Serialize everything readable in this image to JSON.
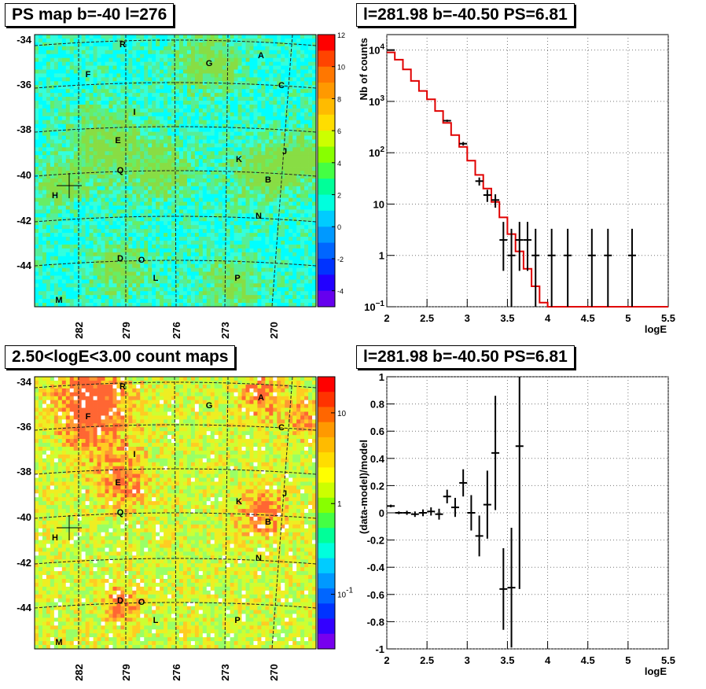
{
  "panels": {
    "ps_map_title": "PS map b=-40 l=276",
    "spectrum_title": "l=281.98 b=-40.50 PS=6.81",
    "count_map_title": "2.50<logE<3.00 count maps",
    "residual_title": "l=281.98 b=-40.50 PS=6.81"
  },
  "colors": {
    "model_line": "#e00000",
    "data_points": "#000000",
    "grid": "#777777"
  },
  "chart_data": [
    {
      "type": "heatmap",
      "title": "PS map b=-40 l=276",
      "y_ticks": [
        "-34",
        "-36",
        "-38",
        "-40",
        "-42",
        "-44"
      ],
      "x_ticks": [
        "282",
        "279",
        "276",
        "273",
        "270"
      ],
      "colorbar_ticks": [
        "12",
        "10",
        "8",
        "6",
        "4",
        "2",
        "0",
        "-2",
        "-4"
      ],
      "colorbar_range": [
        -5,
        12
      ],
      "source_labels": [
        "R",
        "G",
        "A",
        "F",
        "C",
        "I",
        "E",
        "J",
        "K",
        "Q",
        "B",
        "H",
        "N",
        "D",
        "O",
        "L",
        "P",
        "M"
      ],
      "marker": "H"
    },
    {
      "type": "line",
      "title": "l=281.98 b=-40.50 PS=6.81",
      "xlabel": "logE",
      "ylabel": "Nb of counts",
      "xlim": [
        2,
        5.5
      ],
      "ylim": [
        0.1,
        20000
      ],
      "log_y": true,
      "x_ticks": [
        "2",
        "2.5",
        "3",
        "3.5",
        "4",
        "4.5",
        "5",
        "5.5"
      ],
      "y_ticks": [
        {
          "value": 0.1,
          "base": "10",
          "exp": "−1"
        },
        {
          "value": 1,
          "base": "1",
          "exp": ""
        },
        {
          "value": 10,
          "base": "10",
          "exp": ""
        },
        {
          "value": 100,
          "base": "10",
          "exp": "2"
        },
        {
          "value": 1000,
          "base": "10",
          "exp": "3"
        },
        {
          "value": 10000,
          "base": "10",
          "exp": "4"
        }
      ],
      "series": [
        {
          "kind": "step",
          "x_edges": [
            2.0,
            2.1,
            2.2,
            2.3,
            2.4,
            2.5,
            2.6,
            2.7,
            2.8,
            2.9,
            3.0,
            3.1,
            3.2,
            3.3,
            3.4,
            3.5,
            3.6,
            3.7,
            3.8,
            3.9,
            4.0,
            4.1,
            5.5
          ],
          "values": [
            9000,
            6500,
            4200,
            2500,
            1600,
            1100,
            650,
            380,
            220,
            130,
            70,
            37,
            20,
            11,
            5.5,
            2.6,
            1.2,
            0.55,
            0.25,
            0.12,
            0.1,
            0.1
          ]
        },
        {
          "kind": "errorbars",
          "x": [
            2.05,
            2.75,
            2.95,
            3.15,
            3.25,
            3.35,
            3.45,
            3.55,
            3.65,
            3.75,
            3.85,
            4.05,
            4.25,
            4.55,
            4.75,
            5.05
          ],
          "y": [
            10000,
            420,
            150,
            28,
            15,
            12,
            2,
            1,
            2,
            2,
            1,
            1,
            1,
            1,
            1,
            1
          ],
          "y_err_low": [
            100,
            20,
            12,
            5,
            4,
            3.5,
            1.5,
            0.9,
            1.5,
            1.5,
            0.9,
            0.9,
            0.9,
            0.9,
            0.9,
            0.9
          ],
          "y_err_high": [
            100,
            20,
            12,
            5,
            4,
            3.5,
            2.5,
            2.3,
            2.5,
            2.5,
            2.3,
            2.3,
            2.3,
            2.3,
            2.3,
            2.3
          ]
        }
      ]
    },
    {
      "type": "heatmap",
      "title": "2.50<logE<3.00 count maps",
      "y_ticks": [
        "-34",
        "-36",
        "-38",
        "-40",
        "-42",
        "-44"
      ],
      "x_ticks": [
        "282",
        "279",
        "276",
        "273",
        "270"
      ],
      "colorbar_ticks": [
        {
          "value": 10,
          "base": "10",
          "exp": ""
        },
        {
          "value": 1,
          "base": "1",
          "exp": ""
        },
        {
          "value": 0.1,
          "base": "10",
          "exp": "-1"
        }
      ],
      "source_labels": [
        "R",
        "G",
        "A",
        "F",
        "C",
        "I",
        "E",
        "J",
        "K",
        "Q",
        "B",
        "H",
        "N",
        "D",
        "O",
        "L",
        "P",
        "M"
      ],
      "marker": "H"
    },
    {
      "type": "scatter",
      "title": "l=281.98 b=-40.50 PS=6.81",
      "xlabel": "logE",
      "ylabel": "(data-model)/model",
      "xlim": [
        2,
        5.5
      ],
      "ylim": [
        -1,
        1
      ],
      "x_ticks": [
        "2",
        "2.5",
        "3",
        "3.5",
        "4",
        "4.5",
        "5",
        "5.5"
      ],
      "y_ticks": [
        "1",
        "0.8",
        "0.6",
        "0.4",
        "0.2",
        "0",
        "-0.2",
        "-0.4",
        "-0.6",
        "-0.8",
        "-1"
      ],
      "points": [
        {
          "x": 2.05,
          "y": 0.05,
          "err": 0.01
        },
        {
          "x": 2.15,
          "y": 0.0,
          "err": 0.01
        },
        {
          "x": 2.25,
          "y": 0.0,
          "err": 0.015
        },
        {
          "x": 2.35,
          "y": -0.01,
          "err": 0.02
        },
        {
          "x": 2.45,
          "y": 0.0,
          "err": 0.025
        },
        {
          "x": 2.55,
          "y": 0.01,
          "err": 0.03
        },
        {
          "x": 2.65,
          "y": -0.01,
          "err": 0.04
        },
        {
          "x": 2.75,
          "y": 0.12,
          "err": 0.05
        },
        {
          "x": 2.85,
          "y": 0.04,
          "err": 0.07
        },
        {
          "x": 2.95,
          "y": 0.22,
          "err": 0.1
        },
        {
          "x": 3.05,
          "y": 0.0,
          "err": 0.13
        },
        {
          "x": 3.15,
          "y": -0.17,
          "err": 0.15
        },
        {
          "x": 3.25,
          "y": 0.06,
          "err": 0.25
        },
        {
          "x": 3.35,
          "y": 0.44,
          "err": 0.42
        },
        {
          "x": 3.45,
          "y": -0.56,
          "err": 0.3
        },
        {
          "x": 3.55,
          "y": -0.55,
          "err": 0.44
        },
        {
          "x": 3.65,
          "y": 0.49,
          "err": 1.05
        }
      ]
    }
  ]
}
